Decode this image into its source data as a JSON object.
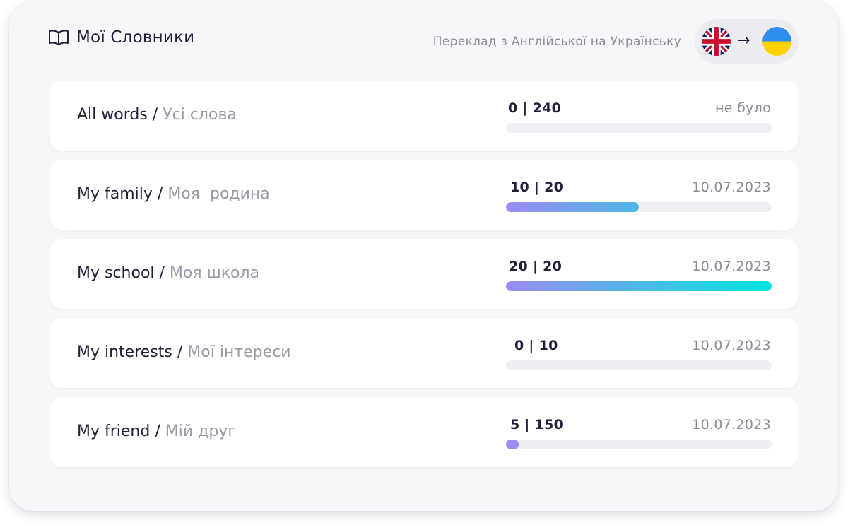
{
  "header": {
    "title": "Мої Словники",
    "translation_label": "Переклад з Англійської на Українську",
    "lang_from_icon": "uk-flag-icon",
    "lang_to_icon": "ua-flag-icon",
    "arrow": "→"
  },
  "dictionaries": [
    {
      "en": "All words",
      "sep": " / ",
      "ua": "Усі слова",
      "count": "0 | 240",
      "date": "не було",
      "progress": 0
    },
    {
      "en": "My family",
      "sep": " / ",
      "ua": "Моя  родина",
      "count": "10 | 20",
      "date": "10.07.2023",
      "progress": 0.5
    },
    {
      "en": "My school",
      "sep": " / ",
      "ua": "Моя школа",
      "count": "20 | 20",
      "date": "10.07.2023",
      "progress": 1.0
    },
    {
      "en": "My interests",
      "sep": " / ",
      "ua": "Мої інтереси",
      "count": "0 | 10",
      "date": "10.07.2023",
      "progress": 0
    },
    {
      "en": "My friend",
      "sep": " / ",
      "ua": "Мій друг",
      "count": "5 | 150",
      "date": "10.07.2023",
      "progress": 0.033
    }
  ],
  "colors": {
    "gradient_start": "#9b8cf2",
    "gradient_end": "#00e3dc",
    "text_dark": "#231f3a",
    "text_muted": "#8c8c9a"
  }
}
